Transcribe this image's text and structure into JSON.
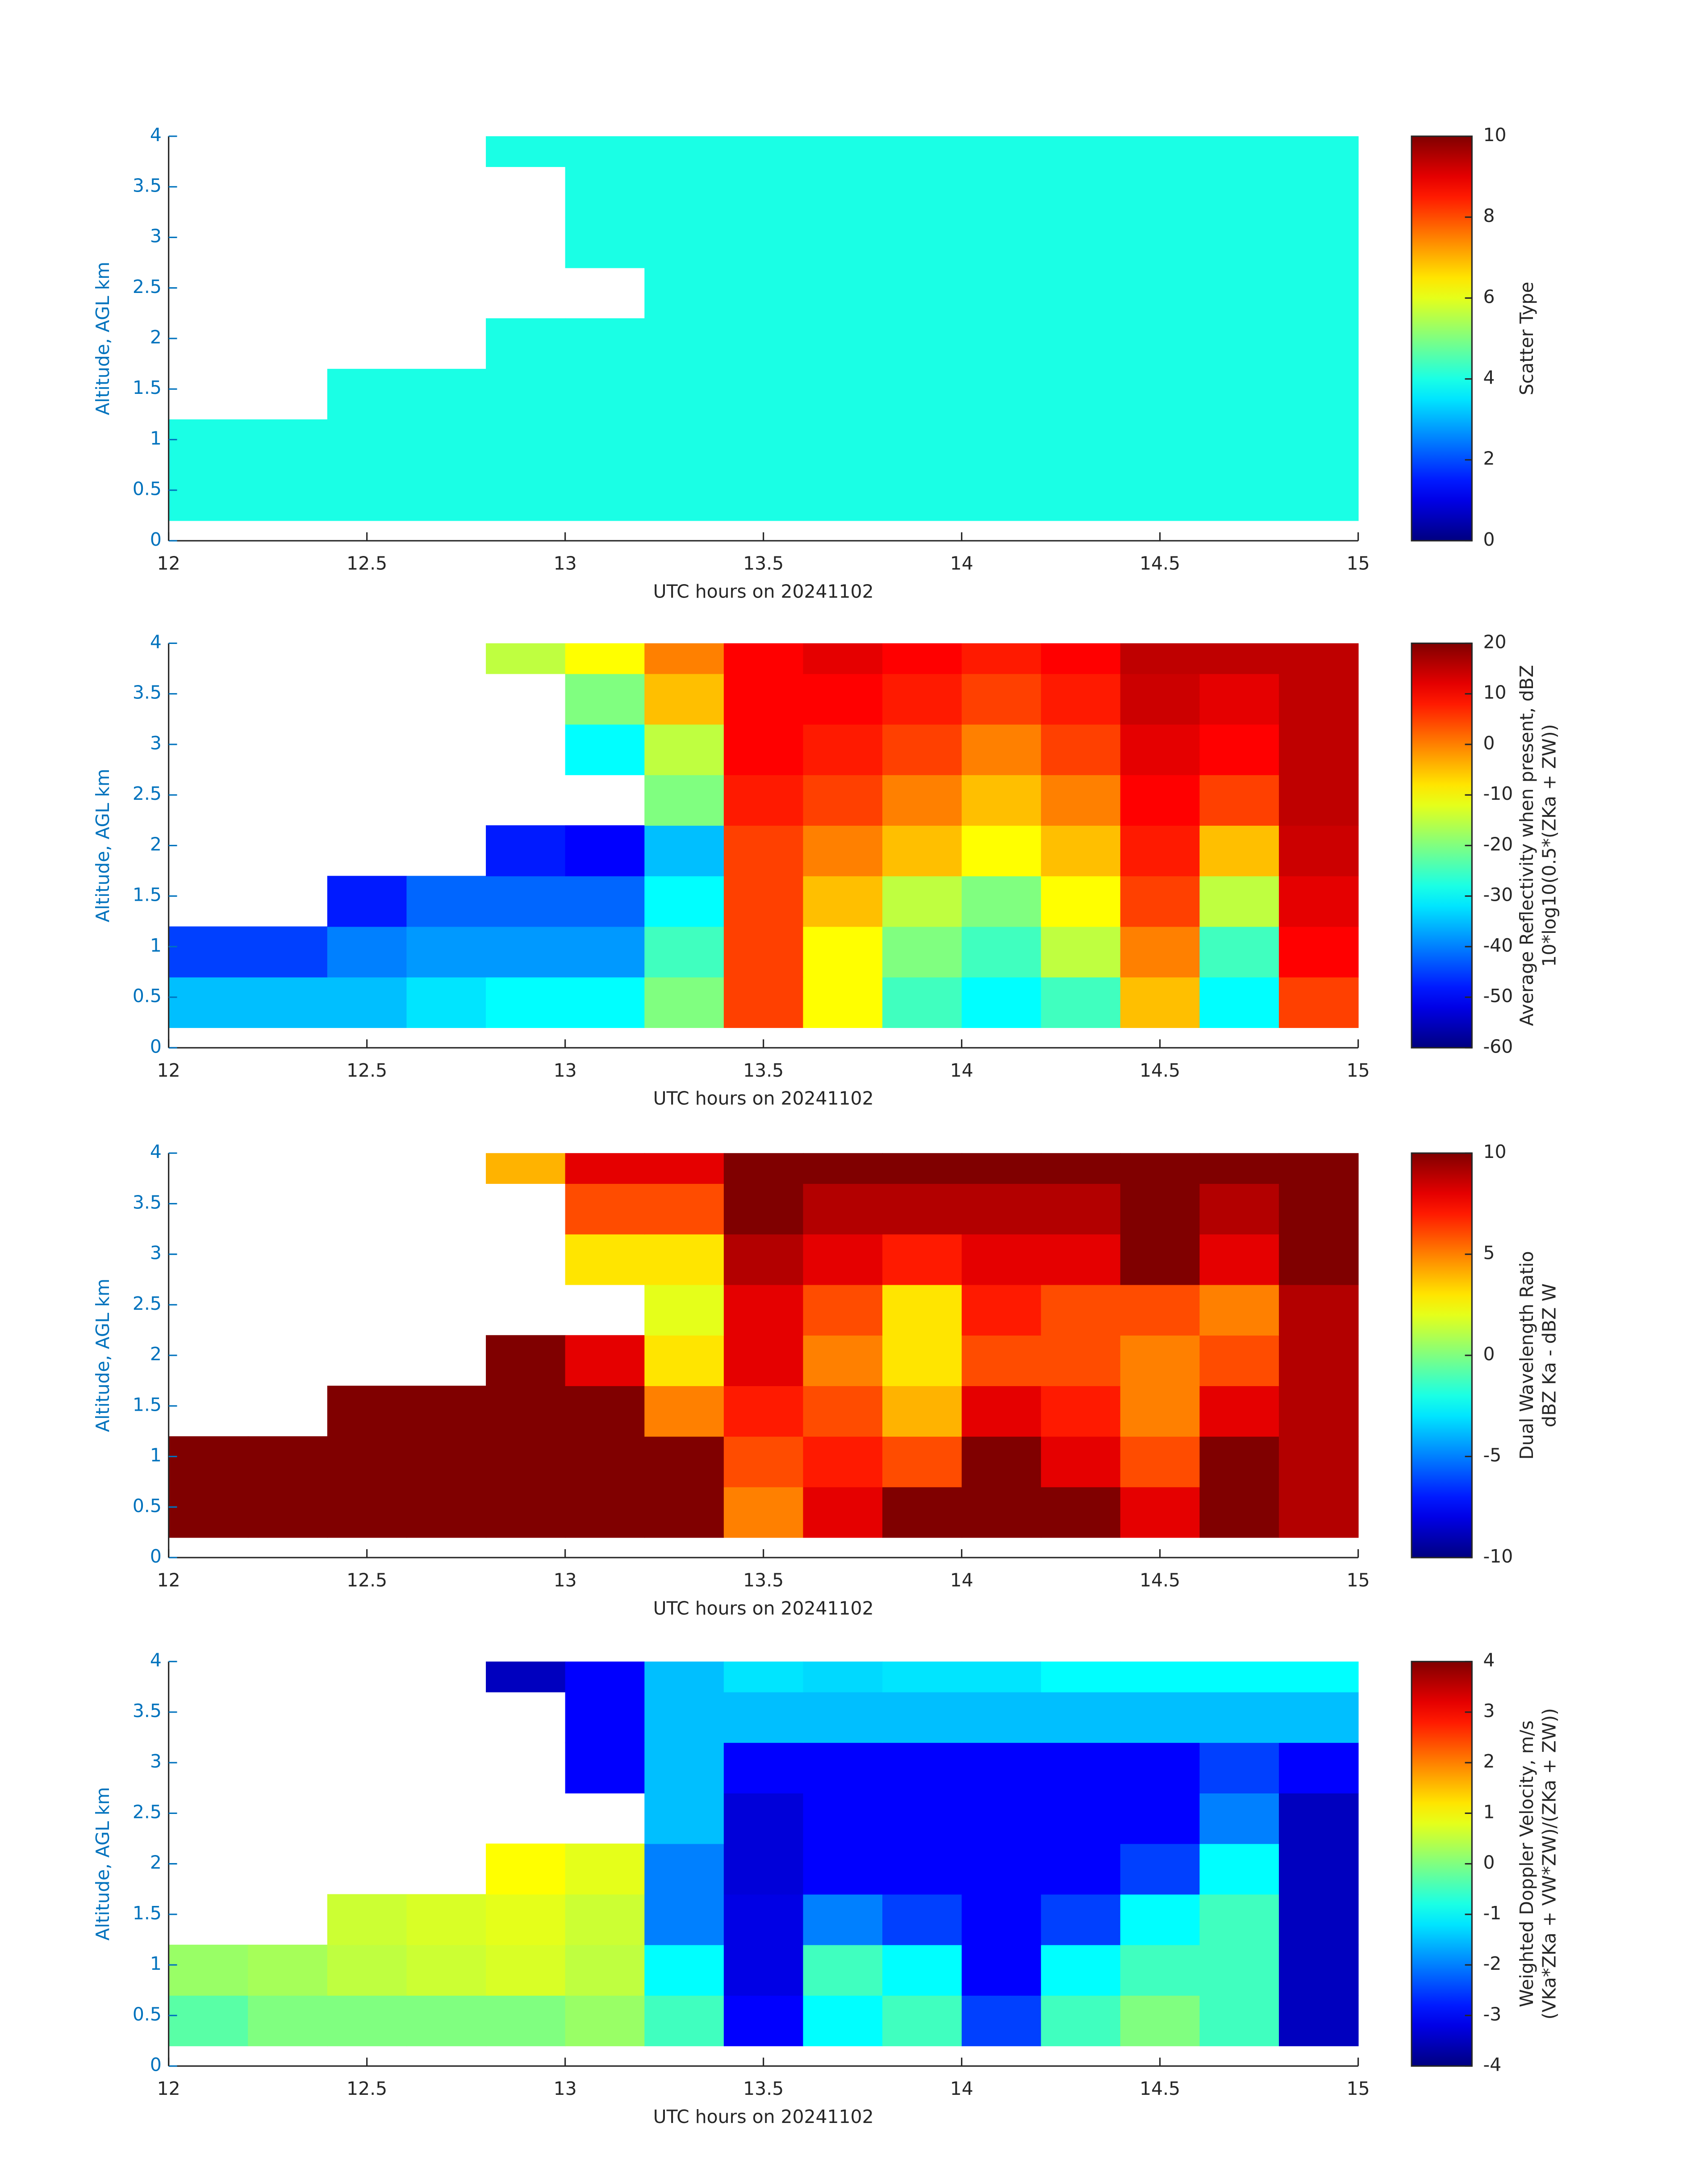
{
  "chart_data": [
    {
      "type": "heatmap",
      "colormap": "jet",
      "xlabel": "UTC hours on 20241102",
      "ylabel": "Altitude, AGL km",
      "colorbar_label": [
        "Scatter Type"
      ],
      "x_bins": [
        12,
        12.2,
        12.4,
        12.6,
        12.8,
        13,
        13.2,
        13.4,
        13.6,
        13.8,
        14,
        14.2,
        14.4,
        14.6,
        14.8,
        15
      ],
      "y_bins": [
        0.2,
        0.7,
        1.2,
        1.7,
        2.2,
        2.7,
        3.2,
        3.7,
        4
      ],
      "z": [
        [
          4,
          4,
          4,
          4,
          4,
          4,
          4,
          4,
          4,
          4,
          4,
          4,
          4,
          4,
          4
        ],
        [
          4,
          4,
          4,
          4,
          4,
          4,
          4,
          4,
          4,
          4,
          4,
          4,
          4,
          4,
          4
        ],
        [
          null,
          null,
          4,
          4,
          4,
          4,
          4,
          4,
          4,
          4,
          4,
          4,
          4,
          4,
          4
        ],
        [
          null,
          null,
          null,
          null,
          4,
          4,
          4,
          4,
          4,
          4,
          4,
          4,
          4,
          4,
          4
        ],
        [
          null,
          null,
          null,
          null,
          null,
          null,
          4,
          4,
          4,
          4,
          4,
          4,
          4,
          4,
          4
        ],
        [
          null,
          null,
          null,
          null,
          null,
          4,
          4,
          4,
          4,
          4,
          4,
          4,
          4,
          4,
          4
        ],
        [
          null,
          null,
          null,
          null,
          null,
          4,
          4,
          4,
          4,
          4,
          4,
          4,
          4,
          4,
          4
        ],
        [
          null,
          null,
          null,
          null,
          4,
          4,
          4,
          4,
          4,
          4,
          4,
          4,
          4,
          4,
          4
        ]
      ],
      "xlim": [
        12,
        15
      ],
      "ylim": [
        0,
        4
      ],
      "xticks": [
        12,
        12.5,
        13,
        13.5,
        14,
        14.5,
        15
      ],
      "yticks": [
        0,
        0.5,
        1,
        1.5,
        2,
        2.5,
        3,
        3.5,
        4
      ],
      "clim": [
        0,
        10
      ],
      "cticks": [
        0,
        2,
        4,
        6,
        8,
        10
      ]
    },
    {
      "type": "heatmap",
      "colormap": "jet",
      "xlabel": "UTC hours on 20241102",
      "ylabel": "Altitude, AGL km",
      "colorbar_label": [
        "Average Reflectivity when present, dBZ",
        "10*log10(0.5*(ZKa + ZW))"
      ],
      "x_bins": [
        12,
        12.2,
        12.4,
        12.6,
        12.8,
        13,
        13.2,
        13.4,
        13.6,
        13.8,
        14,
        14.2,
        14.4,
        14.6,
        14.8,
        15
      ],
      "y_bins": [
        0.2,
        0.7,
        1.2,
        1.7,
        2.2,
        2.7,
        3.2,
        3.7,
        4
      ],
      "z": [
        [
          -35,
          -35,
          -35,
          -32,
          -30,
          -30,
          -20,
          5,
          -10,
          -25,
          -30,
          -25,
          -5,
          -30,
          5
        ],
        [
          -45,
          -45,
          -40,
          -38,
          -38,
          -38,
          -25,
          5,
          -10,
          -20,
          -25,
          -15,
          0,
          -25,
          10
        ],
        [
          null,
          null,
          -48,
          -42,
          -42,
          -42,
          -30,
          5,
          -5,
          -15,
          -20,
          -10,
          5,
          -15,
          12
        ],
        [
          null,
          null,
          null,
          null,
          -48,
          -50,
          -35,
          5,
          0,
          -5,
          -10,
          -5,
          8,
          -5,
          14
        ],
        [
          null,
          null,
          null,
          null,
          null,
          null,
          -20,
          8,
          5,
          0,
          -5,
          0,
          10,
          5,
          15
        ],
        [
          null,
          null,
          null,
          null,
          null,
          -30,
          -15,
          10,
          8,
          5,
          0,
          5,
          12,
          10,
          15
        ],
        [
          null,
          null,
          null,
          null,
          null,
          -20,
          -5,
          10,
          10,
          8,
          5,
          8,
          14,
          12,
          15
        ],
        [
          null,
          null,
          null,
          null,
          -15,
          -10,
          0,
          10,
          12,
          10,
          8,
          10,
          15,
          15,
          15
        ]
      ],
      "xlim": [
        12,
        15
      ],
      "ylim": [
        0,
        4
      ],
      "xticks": [
        12,
        12.5,
        13,
        13.5,
        14,
        14.5,
        15
      ],
      "yticks": [
        0,
        0.5,
        1,
        1.5,
        2,
        2.5,
        3,
        3.5,
        4
      ],
      "clim": [
        -60,
        20
      ],
      "cticks": [
        -60,
        -50,
        -40,
        -30,
        -20,
        -10,
        0,
        10,
        20
      ]
    },
    {
      "type": "heatmap",
      "colormap": "jet",
      "xlabel": "UTC hours on 20241102",
      "ylabel": "Altitude, AGL km",
      "colorbar_label": [
        "Dual Wavelength Ratio",
        "dBZ Ka - dBZ W"
      ],
      "x_bins": [
        12,
        12.2,
        12.4,
        12.6,
        12.8,
        13,
        13.2,
        13.4,
        13.6,
        13.8,
        14,
        14.2,
        14.4,
        14.6,
        14.8,
        15
      ],
      "y_bins": [
        0.2,
        0.7,
        1.2,
        1.7,
        2.2,
        2.7,
        3.2,
        3.7,
        4
      ],
      "z": [
        [
          10,
          10,
          10,
          10,
          10,
          10,
          10,
          5,
          8,
          10,
          10,
          10,
          8,
          10,
          9
        ],
        [
          10,
          10,
          10,
          10,
          10,
          10,
          10,
          6,
          7,
          6,
          10,
          8,
          6,
          10,
          9
        ],
        [
          null,
          null,
          10,
          10,
          10,
          10,
          5,
          7,
          6,
          4,
          8,
          7,
          5,
          8,
          9
        ],
        [
          null,
          null,
          null,
          null,
          10,
          8,
          3,
          8,
          5,
          3,
          6,
          6,
          5,
          6,
          9
        ],
        [
          null,
          null,
          null,
          null,
          null,
          null,
          2,
          8,
          6,
          3,
          7,
          6,
          6,
          5,
          9
        ],
        [
          null,
          null,
          null,
          null,
          null,
          3,
          3,
          9,
          8,
          7,
          8,
          8,
          10,
          8,
          10
        ],
        [
          null,
          null,
          null,
          null,
          null,
          6,
          6,
          10,
          9,
          9,
          9,
          9,
          10,
          9,
          10
        ],
        [
          null,
          null,
          null,
          null,
          4,
          8,
          8,
          10,
          10,
          10,
          10,
          10,
          10,
          10,
          10
        ]
      ],
      "xlim": [
        12,
        15
      ],
      "ylim": [
        0,
        4
      ],
      "xticks": [
        12,
        12.5,
        13,
        13.5,
        14,
        14.5,
        15
      ],
      "yticks": [
        0,
        0.5,
        1,
        1.5,
        2,
        2.5,
        3,
        3.5,
        4
      ],
      "clim": [
        -10,
        10
      ],
      "cticks": [
        -10,
        -5,
        0,
        5,
        10
      ]
    },
    {
      "type": "heatmap",
      "colormap": "jet",
      "xlabel": "UTC hours on 20241102",
      "ylabel": "Altitude, AGL km",
      "colorbar_label": [
        "Weighted Doppler Velocity, m/s",
        "(VKa*ZKa + VW*ZW)/(ZKa + ZW))"
      ],
      "x_bins": [
        12,
        12.2,
        12.4,
        12.6,
        12.8,
        13,
        13.2,
        13.4,
        13.6,
        13.8,
        14,
        14.2,
        14.4,
        14.6,
        14.8,
        15
      ],
      "y_bins": [
        0.2,
        0.7,
        1.2,
        1.7,
        2.2,
        2.7,
        3.2,
        3.7,
        4
      ],
      "z": [
        [
          -0.3,
          0,
          0,
          0,
          0,
          0.2,
          -0.5,
          -3,
          -1,
          -0.5,
          -2.5,
          -0.5,
          0,
          -0.5,
          -3.5
        ],
        [
          0.2,
          0.3,
          0.5,
          0.6,
          0.7,
          0.5,
          -1,
          -3.2,
          -0.5,
          -1,
          -3,
          -1,
          -0.5,
          -0.5,
          -3.5
        ],
        [
          null,
          null,
          0.6,
          0.7,
          0.8,
          0.6,
          -2,
          -3.2,
          -2,
          -2.5,
          -3,
          -2.5,
          -1,
          -0.5,
          -3.5
        ],
        [
          null,
          null,
          null,
          null,
          1,
          0.8,
          -2,
          -3.3,
          -3,
          -3,
          -3,
          -3,
          -2.5,
          -1,
          -3.5
        ],
        [
          null,
          null,
          null,
          null,
          null,
          null,
          -1.5,
          -3.3,
          -3,
          -3,
          -3,
          -3,
          -3,
          -2,
          -3.5
        ],
        [
          null,
          null,
          null,
          null,
          null,
          -3,
          -1.5,
          -3,
          -3,
          -3,
          -3,
          -3,
          -3,
          -2.5,
          -3
        ],
        [
          null,
          null,
          null,
          null,
          null,
          -3,
          -1.5,
          -1.5,
          -1.5,
          -1.5,
          -1.5,
          -1.5,
          -1.5,
          -1.5,
          -1.5
        ],
        [
          null,
          null,
          null,
          null,
          -3.5,
          -3,
          -1.5,
          -1.2,
          -1.3,
          -1.2,
          -1.2,
          -1,
          -1,
          -1,
          -1
        ]
      ],
      "xlim": [
        12,
        15
      ],
      "ylim": [
        0,
        4
      ],
      "xticks": [
        12,
        12.5,
        13,
        13.5,
        14,
        14.5,
        15
      ],
      "yticks": [
        0,
        0.5,
        1,
        1.5,
        2,
        2.5,
        3,
        3.5,
        4
      ],
      "clim": [
        -4,
        4
      ],
      "cticks": [
        -4,
        -3,
        -2,
        -1,
        0,
        1,
        2,
        3,
        4
      ]
    }
  ]
}
